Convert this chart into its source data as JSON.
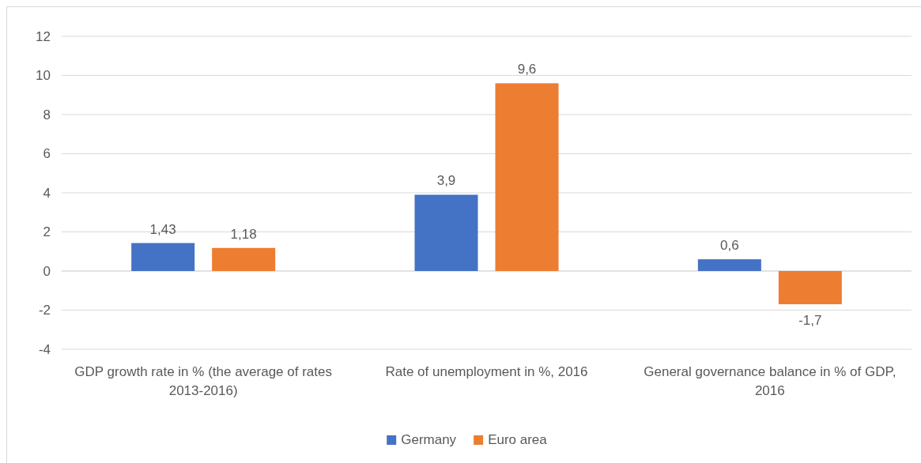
{
  "chart_data": {
    "type": "bar",
    "categories": [
      "GDP growth rate in % (the average of rates 2013-2016)",
      "Rate of unemployment in %, 2016",
      "General governance balance in % of GDP, 2016"
    ],
    "series": [
      {
        "name": "Germany",
        "color": "#4472c4",
        "values": [
          1.43,
          3.9,
          0.6
        ],
        "value_labels": [
          "1,43",
          "3,9",
          "0,6"
        ]
      },
      {
        "name": "Euro area",
        "color": "#ed7d31",
        "values": [
          1.18,
          9.6,
          -1.7
        ],
        "value_labels": [
          "1,18",
          "9,6",
          "-1,7"
        ]
      }
    ],
    "ylim": [
      -4,
      12
    ],
    "yticks": [
      -4,
      -2,
      0,
      2,
      4,
      6,
      8,
      10,
      12
    ],
    "grid": "y",
    "legend": "bottom"
  }
}
